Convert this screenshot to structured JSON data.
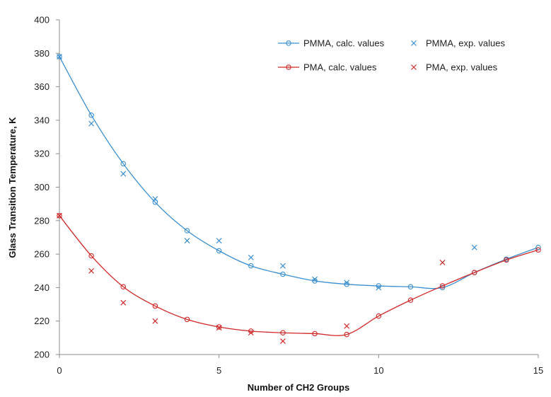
{
  "chart_data": {
    "type": "scatter",
    "title": "",
    "xlabel": "Number of CH2 Groups",
    "ylabel": "Glass Transition Temperature, K",
    "xlim": [
      0,
      15
    ],
    "ylim": [
      200,
      400
    ],
    "x_ticks": [
      "0",
      "5",
      "10",
      "15"
    ],
    "y_ticks": [
      "200",
      "220",
      "240",
      "260",
      "280",
      "300",
      "320",
      "340",
      "360",
      "380",
      "400"
    ],
    "grid": false,
    "legend_position": "top-right",
    "series": [
      {
        "name": "PMMA, calc. values",
        "kind": "line-markers",
        "color": "#3b8fd0",
        "x": [
          0,
          1,
          2,
          3,
          4,
          5,
          6,
          7,
          8,
          9,
          10,
          11,
          12,
          13,
          14,
          15
        ],
        "y": [
          378,
          343,
          314,
          291,
          274,
          262,
          253,
          248,
          244,
          242,
          241,
          240.5,
          240,
          249,
          257,
          264
        ]
      },
      {
        "name": "PMMA, exp. values",
        "kind": "markers-x",
        "color": "#3b8fd0",
        "x": [
          0,
          1,
          2,
          3,
          4,
          5,
          6,
          7,
          8,
          9,
          10,
          13
        ],
        "y": [
          378,
          338,
          308,
          293,
          268,
          268,
          258,
          253,
          245,
          243,
          240,
          264
        ]
      },
      {
        "name": "PMA, calc. values",
        "kind": "line-markers",
        "color": "#d02828",
        "x": [
          0,
          1,
          2,
          3,
          4,
          5,
          6,
          7,
          8,
          9,
          10,
          11,
          12,
          13,
          14,
          15
        ],
        "y": [
          283,
          259,
          240.5,
          229,
          221,
          216.5,
          214,
          213,
          212.5,
          212,
          223,
          232.5,
          241,
          249,
          256.5,
          262.5
        ]
      },
      {
        "name": "PMA, exp. values",
        "kind": "markers-x",
        "color": "#d02828",
        "x": [
          0,
          1,
          2,
          3,
          5,
          6,
          7,
          9,
          12
        ],
        "y": [
          283,
          250,
          231,
          220,
          216,
          213,
          208,
          217,
          255
        ]
      }
    ]
  }
}
